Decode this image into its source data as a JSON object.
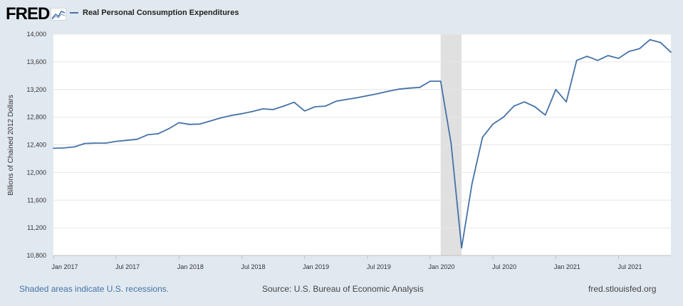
{
  "header": {
    "logo_text": "FRED",
    "legend_label": "Real Personal Consumption Expenditures"
  },
  "colors": {
    "series": "#4572a7",
    "background": "#e1e9f0",
    "plot_bg": "#ffffff",
    "recession": "#e0e0e0",
    "grid": "#e6e6e6"
  },
  "chart_data": {
    "type": "line",
    "title": "Real Personal Consumption Expenditures",
    "xlabel": "",
    "ylabel": "Billions of Chained 2012 Dollars",
    "ylim": [
      10800,
      14000
    ],
    "yticks": [
      10800,
      11200,
      11600,
      12000,
      12400,
      12800,
      13200,
      13600,
      14000
    ],
    "ytick_labels": [
      "10,800",
      "11,200",
      "11,600",
      "12,000",
      "12,400",
      "12,800",
      "13,200",
      "13,600",
      "14,000"
    ],
    "xticks": [
      {
        "index": 0,
        "label": "Jan 2017"
      },
      {
        "index": 6,
        "label": "Jul 2017"
      },
      {
        "index": 12,
        "label": "Jan 2018"
      },
      {
        "index": 18,
        "label": "Jul 2018"
      },
      {
        "index": 24,
        "label": "Jan 2019"
      },
      {
        "index": 30,
        "label": "Jul 2019"
      },
      {
        "index": 36,
        "label": "Jan 2020"
      },
      {
        "index": 42,
        "label": "Jul 2020"
      },
      {
        "index": 48,
        "label": "Jan 2021"
      },
      {
        "index": 54,
        "label": "Jul 2021"
      }
    ],
    "x_start": "Jan 2017",
    "x_end": "Dec 2021",
    "recession": {
      "start_index": 37,
      "end_index": 39
    },
    "series": [
      {
        "name": "Real Personal Consumption Expenditures",
        "values": [
          12350,
          12355,
          12370,
          12420,
          12425,
          12425,
          12450,
          12465,
          12480,
          12545,
          12560,
          12630,
          12720,
          12695,
          12700,
          12745,
          12790,
          12825,
          12850,
          12880,
          12920,
          12910,
          12960,
          13015,
          12890,
          12950,
          12960,
          13030,
          13055,
          13080,
          13110,
          13140,
          13175,
          13205,
          13220,
          13230,
          13320,
          13320,
          12420,
          10910,
          11840,
          12510,
          12700,
          12800,
          12960,
          13020,
          12950,
          12830,
          13200,
          13020,
          13620,
          13680,
          13620,
          13690,
          13650,
          13750,
          13790,
          13920,
          13880,
          13740
        ]
      }
    ]
  },
  "footer": {
    "left": "Shaded areas indicate U.S. recessions.",
    "center": "Source: U.S. Bureau of Economic Analysis",
    "right": "fred.stlouisfed.org"
  }
}
